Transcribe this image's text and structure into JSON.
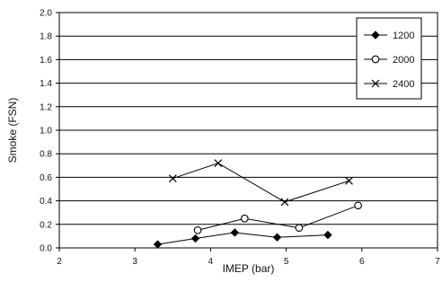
{
  "chart_data": {
    "type": "line",
    "xlabel": "IMEP (bar)",
    "ylabel": "Smoke (FSN)",
    "xlim": [
      2,
      7
    ],
    "ylim": [
      0,
      2.0
    ],
    "x_ticks": [
      "2",
      "3",
      "4",
      "5",
      "6",
      "7"
    ],
    "y_ticks": [
      "0.0",
      "0.2",
      "0.4",
      "0.6",
      "0.8",
      "1.0",
      "1.2",
      "1.4",
      "1.6",
      "1.8",
      "2.0"
    ],
    "grid": "horizontal",
    "legend_position": "top-right",
    "series": [
      {
        "name": "1200",
        "marker": "diamond-filled",
        "x": [
          3.3,
          3.8,
          4.32,
          4.88,
          5.55
        ],
        "y": [
          0.03,
          0.08,
          0.13,
          0.09,
          0.11
        ]
      },
      {
        "name": "2000",
        "marker": "circle-open",
        "x": [
          3.83,
          4.45,
          5.17,
          5.95
        ],
        "y": [
          0.15,
          0.25,
          0.17,
          0.36
        ]
      },
      {
        "name": "2400",
        "marker": "x",
        "x": [
          3.5,
          4.1,
          4.98,
          5.83
        ],
        "y": [
          0.59,
          0.72,
          0.39,
          0.57
        ]
      }
    ]
  }
}
